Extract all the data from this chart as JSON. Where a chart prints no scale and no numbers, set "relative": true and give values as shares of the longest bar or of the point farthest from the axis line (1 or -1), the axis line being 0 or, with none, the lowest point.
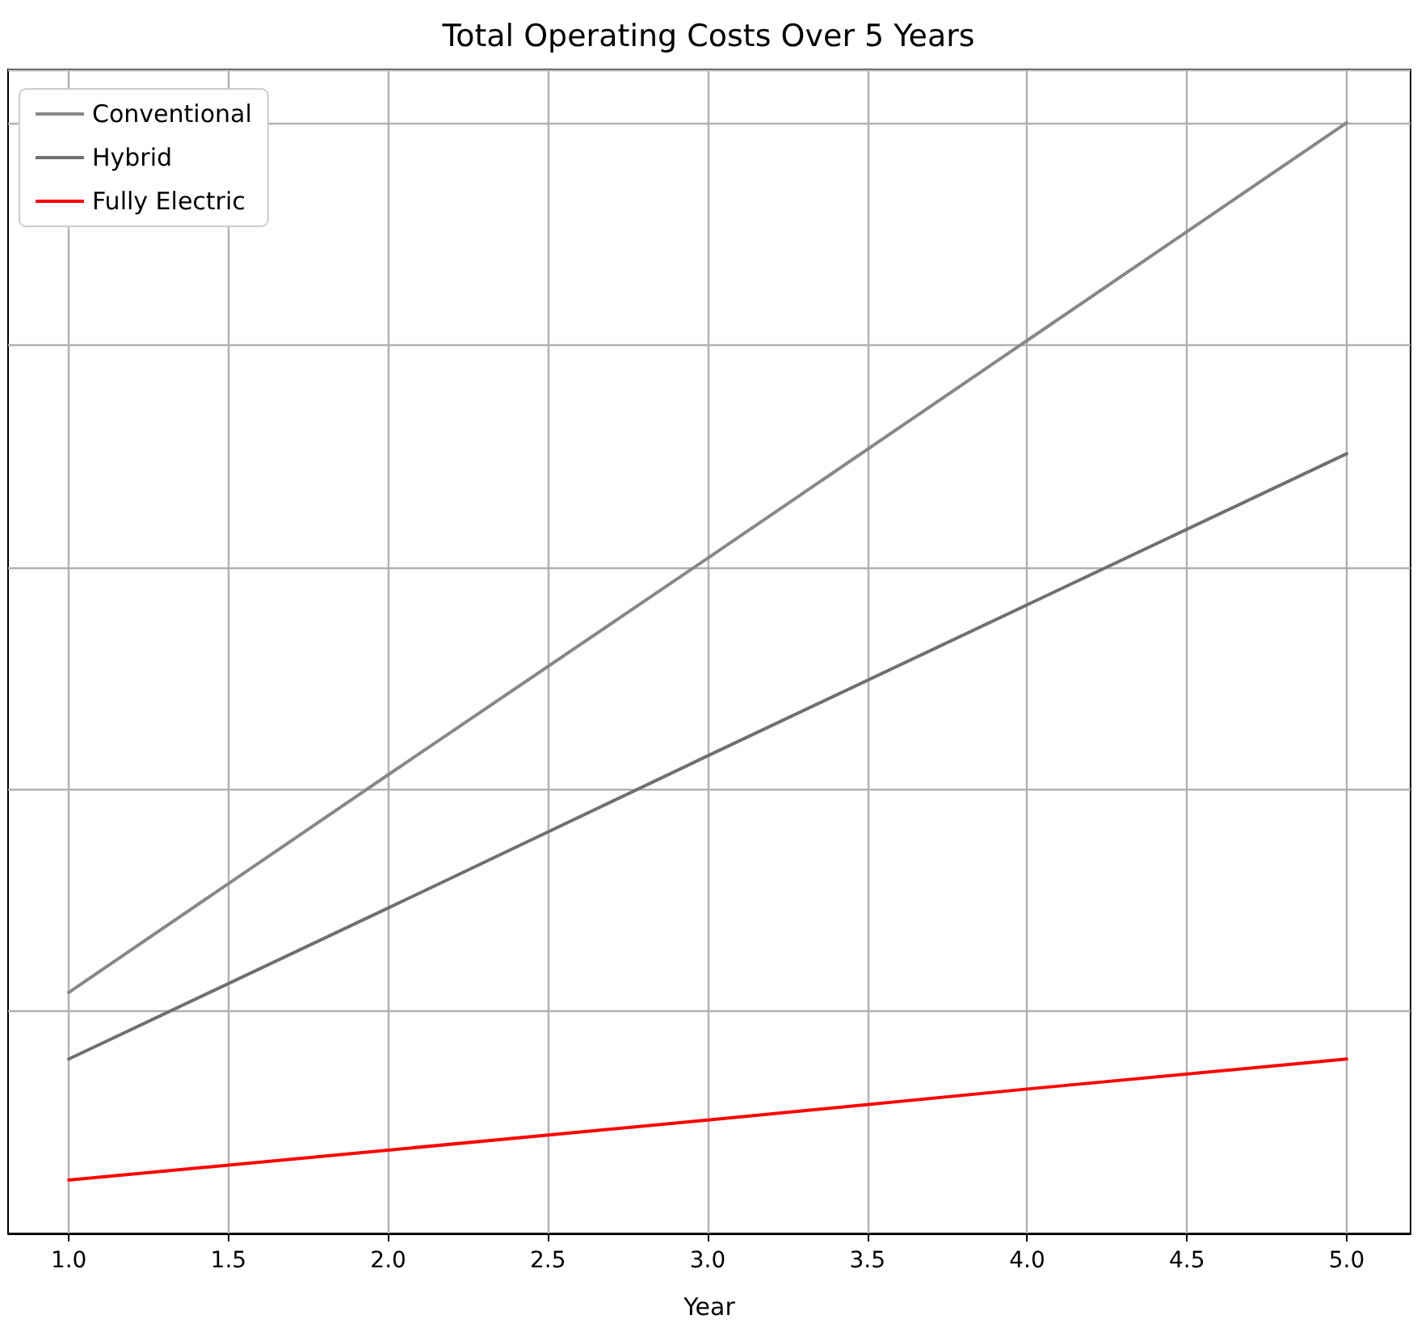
{
  "chart_data": {
    "type": "line",
    "title": "Total Operating Costs Over 5 Years",
    "xlabel": "Year",
    "relative": true,
    "x": [
      1,
      2,
      3,
      4,
      5
    ],
    "series": [
      {
        "name": "Conventional",
        "color": "#888888",
        "values": [
          0.217,
          0.413,
          0.608,
          0.804,
          1.0
        ]
      },
      {
        "name": "Hybrid",
        "color": "#707070",
        "values": [
          0.157,
          0.293,
          0.43,
          0.566,
          0.702
        ]
      },
      {
        "name": "Fully Electric",
        "color": "#ff0000",
        "values": [
          0.048,
          0.075,
          0.102,
          0.13,
          0.157
        ]
      }
    ],
    "xlim": [
      0.81,
      5.2
    ],
    "xticks": [
      {
        "value": 1,
        "label": "1.0"
      },
      {
        "value": 1.5,
        "label": "1.5"
      },
      {
        "value": 2,
        "label": "2.0"
      },
      {
        "value": 2.5,
        "label": "2.5"
      },
      {
        "value": 3,
        "label": "3.0"
      },
      {
        "value": 3.5,
        "label": "3.5"
      },
      {
        "value": 4,
        "label": "4.0"
      },
      {
        "value": 4.5,
        "label": "4.5"
      },
      {
        "value": 5,
        "label": "5.0"
      }
    ],
    "grid": true,
    "legend": "top left",
    "marker": "none",
    "line_style": "solid"
  }
}
